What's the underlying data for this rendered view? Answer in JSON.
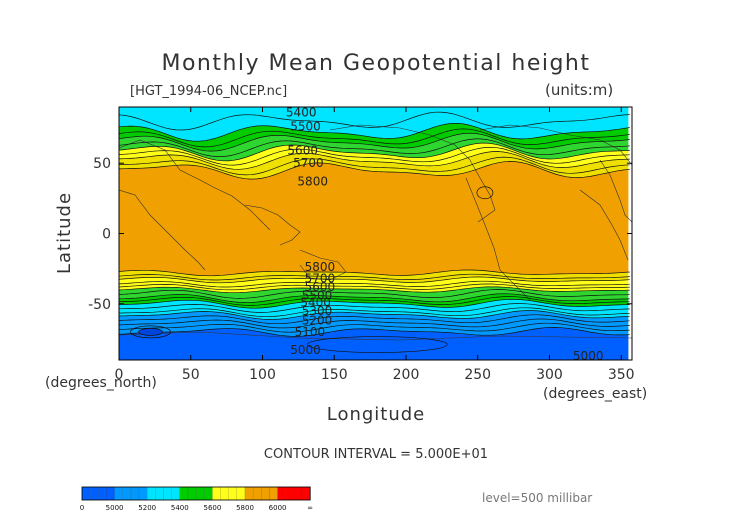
{
  "chart_data": {
    "type": "heatmap",
    "title": "Monthly Mean Geopotential height",
    "file_label": "[HGT_1994-06_NCEP.nc]",
    "units_label": "(units:m)",
    "xlabel": "Longitude",
    "ylabel": "Latitude",
    "x_unit_label": "(degrees_east)",
    "y_unit_label": "(degrees_north)",
    "xlim": [
      0,
      357.5
    ],
    "ylim": [
      -90,
      90
    ],
    "x_ticks": [
      0,
      50,
      100,
      150,
      200,
      250,
      300,
      350
    ],
    "y_ticks": [
      50,
      0,
      -50
    ],
    "contour_interval_text": "CONTOUR INTERVAL = 5.000E+01",
    "level_text": "level=500 millibar",
    "bands": [
      {
        "lat_from": 90,
        "lat_to": 72,
        "range": "5200-5400",
        "color": "#00e5ff"
      },
      {
        "lat_from": 72,
        "lat_to": 65,
        "range": "5400-5500",
        "color": "#00cc00"
      },
      {
        "lat_from": 65,
        "lat_to": 58,
        "range": "5500-5600",
        "color": "#2fd62f"
      },
      {
        "lat_from": 58,
        "lat_to": 52,
        "range": "5600-5700",
        "color": "#ffff1a"
      },
      {
        "lat_from": 52,
        "lat_to": 45,
        "range": "5700-5800",
        "color": "#f0e000"
      },
      {
        "lat_from": 45,
        "lat_to": -28,
        "range": "5800-6000",
        "color": "#f0a000"
      },
      {
        "lat_from": -28,
        "lat_to": -33,
        "range": "5700-5800",
        "color": "#f0e000"
      },
      {
        "lat_from": -33,
        "lat_to": -40,
        "range": "5600-5700",
        "color": "#ffff1a"
      },
      {
        "lat_from": -40,
        "lat_to": -46,
        "range": "5500-5600",
        "color": "#2fd62f"
      },
      {
        "lat_from": -46,
        "lat_to": -50,
        "range": "5400-5500",
        "color": "#00cc00"
      },
      {
        "lat_from": -50,
        "lat_to": -58,
        "range": "5200-5400",
        "color": "#00e5ff"
      },
      {
        "lat_from": -58,
        "lat_to": -70,
        "range": "5000-5200",
        "color": "#0099ff"
      },
      {
        "lat_from": -70,
        "lat_to": -90,
        "range": "0-5000",
        "color": "#0060ff"
      }
    ],
    "contour_labels": [
      {
        "text": "5400",
        "lon": 127,
        "lat": 86
      },
      {
        "text": "5500",
        "lon": 130,
        "lat": 76
      },
      {
        "text": "5600",
        "lon": 128,
        "lat": 59
      },
      {
        "text": "5700",
        "lon": 132,
        "lat": 50
      },
      {
        "text": "5800",
        "lon": 135,
        "lat": 37
      },
      {
        "text": "5800",
        "lon": 140,
        "lat": -24
      },
      {
        "text": "5700",
        "lon": 140,
        "lat": -32
      },
      {
        "text": "5600",
        "lon": 140,
        "lat": -38
      },
      {
        "text": "5500",
        "lon": 138,
        "lat": -44
      },
      {
        "text": "5400",
        "lon": 137,
        "lat": -49
      },
      {
        "text": "5300",
        "lon": 138,
        "lat": -55
      },
      {
        "text": "5200",
        "lon": 138,
        "lat": -62
      },
      {
        "text": "5100",
        "lon": 133,
        "lat": -70
      },
      {
        "text": "5000",
        "lon": 130,
        "lat": -83
      },
      {
        "text": "5000",
        "lon": 327,
        "lat": -87
      }
    ],
    "colorbar": {
      "colors": [
        "#0060ff",
        "#0099ff",
        "#00e5ff",
        "#00cc00",
        "#ffff1a",
        "#f0a000",
        "#ff0000"
      ],
      "labels": [
        "0",
        "5000",
        "5200",
        "5400",
        "5600",
        "5800",
        "6000",
        "∞"
      ]
    }
  }
}
